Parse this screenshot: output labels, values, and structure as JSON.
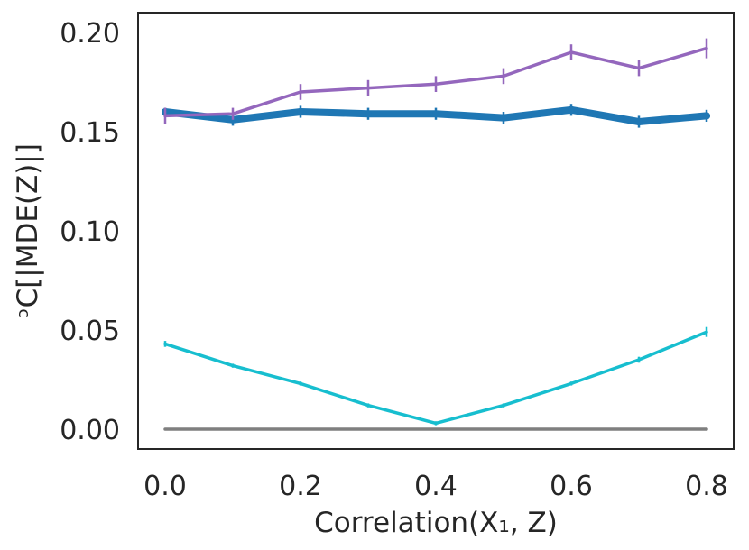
{
  "chart_data": {
    "type": "line",
    "title": "",
    "xlabel": "Correlation(X₁, Z)",
    "ylabel": "ᵓC[|MDE(Z)|]",
    "xlim": [
      -0.04,
      0.84
    ],
    "ylim": [
      -0.01,
      0.21
    ],
    "xticks": [
      0.0,
      0.2,
      0.4,
      0.6,
      0.8
    ],
    "xtick_labels": [
      "0.0",
      "0.2",
      "0.4",
      "0.6",
      "0.8"
    ],
    "yticks": [
      0.0,
      0.05,
      0.1,
      0.15,
      0.2
    ],
    "ytick_labels": [
      "0.00",
      "0.05",
      "0.10",
      "0.15",
      "0.20"
    ],
    "grid": false,
    "legend": "none",
    "x": [
      0.0,
      0.1,
      0.2,
      0.3,
      0.4,
      0.5,
      0.6,
      0.7,
      0.8
    ],
    "series": [
      {
        "name": "gray",
        "color": "#7f7f7f",
        "values": [
          0.0,
          0.0,
          0.0,
          0.0,
          0.0,
          0.0,
          0.0,
          0.0,
          0.0
        ],
        "errors": [
          0,
          0,
          0,
          0,
          0,
          0,
          0,
          0,
          0
        ],
        "line_weight": "medium"
      },
      {
        "name": "cyan",
        "color": "#17becf",
        "values": [
          0.043,
          0.032,
          0.023,
          0.012,
          0.003,
          0.012,
          0.023,
          0.035,
          0.049
        ],
        "errors": [
          0.0015,
          0.001,
          0.001,
          0.001,
          0.001,
          0.001,
          0.001,
          0.0015,
          0.0025
        ],
        "line_weight": "medium"
      },
      {
        "name": "blue",
        "color": "#1f77b4",
        "values": [
          0.16,
          0.156,
          0.16,
          0.159,
          0.159,
          0.157,
          0.161,
          0.155,
          0.158
        ],
        "errors": [
          0.002,
          0.003,
          0.003,
          0.003,
          0.003,
          0.003,
          0.003,
          0.003,
          0.003
        ],
        "line_weight": "thick"
      },
      {
        "name": "purple",
        "color": "#9467bd",
        "values": [
          0.158,
          0.159,
          0.17,
          0.172,
          0.174,
          0.178,
          0.19,
          0.182,
          0.192
        ],
        "errors": [
          0.004,
          0.003,
          0.004,
          0.004,
          0.004,
          0.004,
          0.004,
          0.004,
          0.005
        ],
        "line_weight": "medium"
      }
    ]
  }
}
